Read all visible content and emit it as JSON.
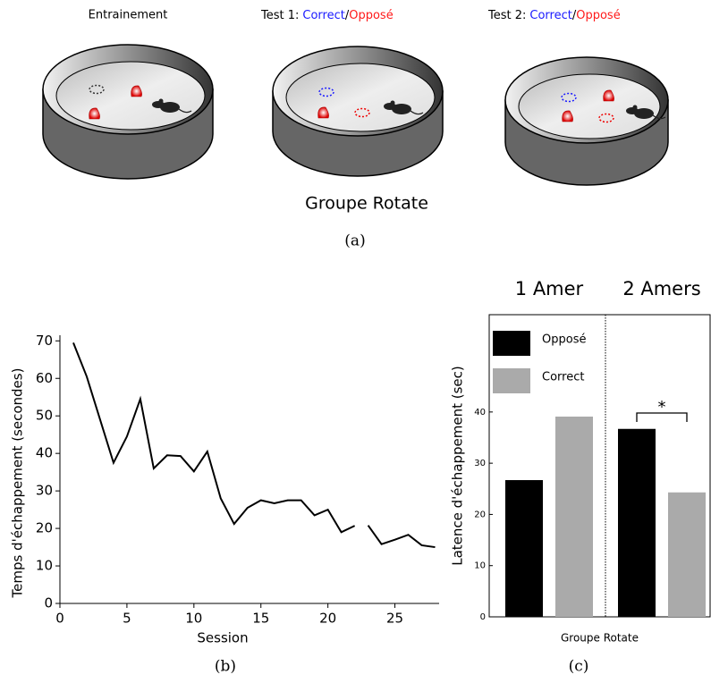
{
  "panel_a": {
    "dishes": [
      {
        "title": "Entrainement"
      },
      {
        "title": "Test 1:",
        "correct": "Correct",
        "sep": "/",
        "opposite": "Opposé"
      },
      {
        "title": "Test 2:",
        "correct": "Correct",
        "sep": "/",
        "opposite": "Opposé"
      }
    ],
    "subtitle": "Groupe Rotate"
  },
  "captions": [
    "(a)",
    "(b)",
    "(c)"
  ],
  "chart_data": [
    {
      "type": "line",
      "x_label": "Session",
      "y_label": "Temps d'échappement (secondes)",
      "x": [
        1,
        2,
        3,
        4,
        5,
        6,
        7,
        8,
        9,
        10,
        11,
        12,
        13,
        14,
        15,
        16,
        17,
        18,
        19,
        20,
        21,
        22,
        22.5,
        23,
        24,
        25,
        26,
        27,
        28
      ],
      "series": [
        {
          "color": "#000000",
          "values": [
            69.5,
            60.5,
            49,
            37.5,
            44.5,
            54.5,
            36,
            39.5,
            39.3,
            35.2,
            40.5,
            28,
            21.2,
            25.5,
            27.5,
            26.7,
            27.5,
            27.5,
            23.5,
            25,
            19,
            20.7,
            null,
            20.8,
            15.8,
            17,
            18.3,
            15.5,
            15
          ]
        }
      ],
      "xlim": [
        0,
        28.3
      ],
      "ylim": [
        0,
        71.5
      ],
      "xticks": [
        0,
        5,
        10,
        15,
        20,
        25
      ],
      "yticks": [
        0,
        10,
        20,
        30,
        40,
        50,
        60,
        70
      ]
    },
    {
      "type": "bar",
      "x_label": "Groupe Rotate",
      "y_label": "Latence d'échappement (sec)",
      "categories": [
        "1 Amer",
        "2 Amers"
      ],
      "series": [
        {
          "name": "Opposé",
          "color": "#000000",
          "values": [
            26.7,
            36.7
          ]
        },
        {
          "name": "Correct",
          "color": "#aaaaaa",
          "values": [
            39.1,
            24.3
          ]
        }
      ],
      "ylim": [
        0,
        59
      ],
      "yticks": [
        0,
        10,
        20,
        30,
        40
      ],
      "legend": "upper left",
      "annotation": "*"
    }
  ]
}
